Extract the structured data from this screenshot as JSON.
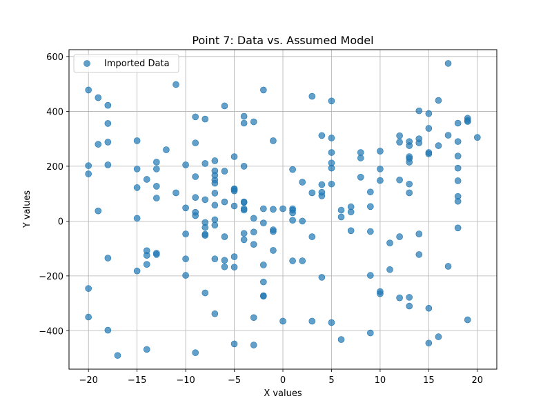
{
  "chart_data": {
    "type": "scatter",
    "title": "Point 7: Data vs. Assumed Model",
    "xlabel": "X values",
    "ylabel": "Y values",
    "xlim": [
      -22,
      22
    ],
    "ylim": [
      -540,
      625
    ],
    "xticks": [
      -20,
      -15,
      -10,
      -5,
      0,
      5,
      10,
      15,
      20
    ],
    "yticks": [
      -400,
      -200,
      0,
      200,
      400,
      600
    ],
    "xtick_labels": [
      "−20",
      "−15",
      "−10",
      "−5",
      "0",
      "5",
      "10",
      "15",
      "20"
    ],
    "ytick_labels": [
      "−400",
      "−200",
      "0",
      "200",
      "400",
      "600"
    ],
    "grid": true,
    "legend_position": "top-left",
    "series": [
      {
        "name": "Imported Data",
        "color": "#1f77b4",
        "points": [
          [
            -20,
            478
          ],
          [
            -20,
            202
          ],
          [
            -20,
            172
          ],
          [
            -20,
            -246
          ],
          [
            -20,
            -350
          ],
          [
            -19,
            450
          ],
          [
            -19,
            280
          ],
          [
            -19,
            37
          ],
          [
            -18,
            422
          ],
          [
            -18,
            356
          ],
          [
            -18,
            288
          ],
          [
            -18,
            205
          ],
          [
            -18,
            -135
          ],
          [
            -18,
            -398
          ],
          [
            -17,
            -490
          ],
          [
            -15,
            293
          ],
          [
            -15,
            190
          ],
          [
            -15,
            122
          ],
          [
            -15,
            10
          ],
          [
            -15,
            -182
          ],
          [
            -14,
            152
          ],
          [
            -14,
            -108
          ],
          [
            -14,
            -125
          ],
          [
            -14,
            -158
          ],
          [
            -14,
            -468
          ],
          [
            -13,
            215
          ],
          [
            -13,
            190
          ],
          [
            -13,
            127
          ],
          [
            -13,
            84
          ],
          [
            -13,
            -117
          ],
          [
            -13,
            -122
          ],
          [
            -12,
            260
          ],
          [
            -11,
            498
          ],
          [
            -11,
            103
          ],
          [
            -10,
            205
          ],
          [
            -10,
            48
          ],
          [
            -10,
            -47
          ],
          [
            -10,
            -138
          ],
          [
            -10,
            -198
          ],
          [
            -9,
            380
          ],
          [
            -9,
            285
          ],
          [
            -9,
            162
          ],
          [
            -9,
            86
          ],
          [
            -9,
            32
          ],
          [
            -9,
            20
          ],
          [
            -9,
            -480
          ],
          [
            -8,
            372
          ],
          [
            -8,
            210
          ],
          [
            -8,
            78
          ],
          [
            -8,
            -5
          ],
          [
            -8,
            -23
          ],
          [
            -8,
            -48
          ],
          [
            -8,
            -52
          ],
          [
            -8,
            -262
          ],
          [
            -7,
            220
          ],
          [
            -7,
            183
          ],
          [
            -7,
            167
          ],
          [
            -7,
            150
          ],
          [
            -7,
            138
          ],
          [
            -7,
            102
          ],
          [
            -7,
            58
          ],
          [
            -7,
            5
          ],
          [
            -7,
            -15
          ],
          [
            -7,
            -138
          ],
          [
            -7,
            -338
          ],
          [
            -6,
            420
          ],
          [
            -6,
            182
          ],
          [
            -6,
            70
          ],
          [
            -6,
            -57
          ],
          [
            -6,
            -143
          ],
          [
            -6,
            -167
          ],
          [
            -5,
            235
          ],
          [
            -5,
            118
          ],
          [
            -5,
            115
          ],
          [
            -5,
            110
          ],
          [
            -5,
            55
          ],
          [
            -5,
            -130
          ],
          [
            -5,
            -168
          ],
          [
            -5,
            -448
          ],
          [
            -4,
            382
          ],
          [
            -4,
            357
          ],
          [
            -4,
            200
          ],
          [
            -4,
            70
          ],
          [
            -4,
            68
          ],
          [
            -4,
            45
          ],
          [
            -4,
            40
          ],
          [
            -4,
            -45
          ],
          [
            -4,
            -68
          ],
          [
            -3,
            362
          ],
          [
            -3,
            10
          ],
          [
            -3,
            -40
          ],
          [
            -3,
            -85
          ],
          [
            -3,
            -352
          ],
          [
            -3,
            -452
          ],
          [
            -2,
            478
          ],
          [
            -2,
            45
          ],
          [
            -2,
            -7
          ],
          [
            -2,
            -160
          ],
          [
            -2,
            -222
          ],
          [
            -2,
            -272
          ],
          [
            -2,
            -274
          ],
          [
            -1,
            293
          ],
          [
            -1,
            43
          ],
          [
            -1,
            -32
          ],
          [
            -1,
            -38
          ],
          [
            -1,
            -107
          ],
          [
            0,
            45
          ],
          [
            0,
            -365
          ],
          [
            1,
            188
          ],
          [
            1,
            45
          ],
          [
            1,
            40
          ],
          [
            1,
            30
          ],
          [
            1,
            3
          ],
          [
            1,
            -145
          ],
          [
            2,
            142
          ],
          [
            2,
            0
          ],
          [
            2,
            -145
          ],
          [
            3,
            455
          ],
          [
            3,
            103
          ],
          [
            3,
            -57
          ],
          [
            3,
            -365
          ],
          [
            4,
            312
          ],
          [
            4,
            133
          ],
          [
            4,
            105
          ],
          [
            4,
            92
          ],
          [
            4,
            -205
          ],
          [
            5,
            438
          ],
          [
            5,
            303
          ],
          [
            5,
            250
          ],
          [
            5,
            212
          ],
          [
            5,
            193
          ],
          [
            5,
            135
          ],
          [
            5,
            -370
          ],
          [
            6,
            40
          ],
          [
            6,
            15
          ],
          [
            6,
            -432
          ],
          [
            7,
            52
          ],
          [
            7,
            33
          ],
          [
            7,
            -35
          ],
          [
            8,
            250
          ],
          [
            8,
            230
          ],
          [
            8,
            160
          ],
          [
            9,
            106
          ],
          [
            9,
            53
          ],
          [
            9,
            -38
          ],
          [
            9,
            -198
          ],
          [
            9,
            -408
          ],
          [
            10,
            255
          ],
          [
            10,
            190
          ],
          [
            10,
            148
          ],
          [
            10,
            -257
          ],
          [
            10,
            -265
          ],
          [
            11,
            -80
          ],
          [
            11,
            -177
          ],
          [
            12,
            311
          ],
          [
            12,
            288
          ],
          [
            12,
            150
          ],
          [
            12,
            -57
          ],
          [
            12,
            -280
          ],
          [
            13,
            290
          ],
          [
            13,
            275
          ],
          [
            13,
            235
          ],
          [
            13,
            228
          ],
          [
            13,
            215
          ],
          [
            13,
            135
          ],
          [
            13,
            103
          ],
          [
            13,
            -278
          ],
          [
            13,
            -310
          ],
          [
            14,
            402
          ],
          [
            14,
            300
          ],
          [
            14,
            285
          ],
          [
            14,
            -47
          ],
          [
            14,
            -122
          ],
          [
            15,
            392
          ],
          [
            15,
            338
          ],
          [
            15,
            250
          ],
          [
            15,
            245
          ],
          [
            15,
            -318
          ],
          [
            15,
            -445
          ],
          [
            16,
            440
          ],
          [
            16,
            275
          ],
          [
            16,
            -422
          ],
          [
            17,
            575
          ],
          [
            17,
            313
          ],
          [
            17,
            -165
          ],
          [
            18,
            357
          ],
          [
            18,
            290
          ],
          [
            18,
            237
          ],
          [
            18,
            193
          ],
          [
            18,
            147
          ],
          [
            18,
            90
          ],
          [
            18,
            72
          ],
          [
            18,
            -25
          ],
          [
            19,
            375
          ],
          [
            19,
            367
          ],
          [
            19,
            363
          ],
          [
            19,
            -360
          ],
          [
            20,
            305
          ]
        ]
      }
    ]
  }
}
